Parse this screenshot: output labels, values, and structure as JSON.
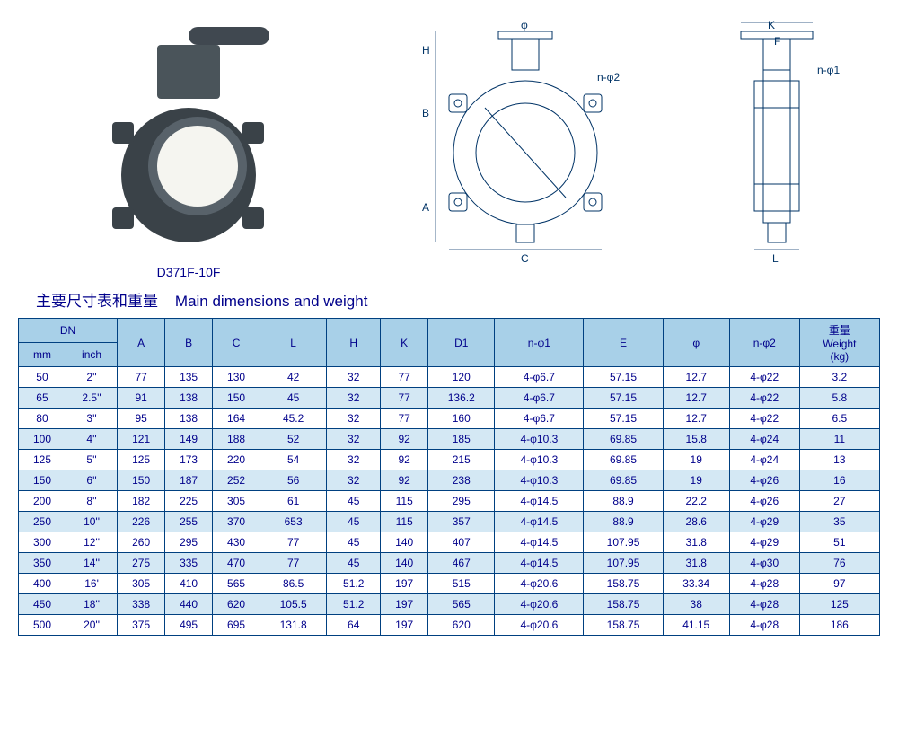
{
  "model": "D371F-10F",
  "title_cn": "主要尺寸表和重量",
  "title_en": "Main dimensions and weight",
  "diagram_labels": {
    "phi": "φ",
    "H": "H",
    "B": "B",
    "A": "A",
    "C": "C",
    "K": "K",
    "F": "F",
    "L": "L",
    "nphi1": "n-φ1",
    "nphi2": "n-φ2"
  },
  "table": {
    "header_group": "DN",
    "headers_sub": [
      "mm",
      "inch"
    ],
    "headers_main": [
      "A",
      "B",
      "C",
      "L",
      "H",
      "K",
      "D1",
      "n-φ1",
      "E",
      "φ",
      "n-φ2"
    ],
    "header_weight_cn": "重量",
    "header_weight_en": "Weight",
    "header_weight_unit": "(kg)",
    "rows": [
      [
        "50",
        "2''",
        "77",
        "135",
        "130",
        "42",
        "32",
        "77",
        "120",
        "4-φ6.7",
        "57.15",
        "12.7",
        "4-φ22",
        "3.2"
      ],
      [
        "65",
        "2.5''",
        "91",
        "138",
        "150",
        "45",
        "32",
        "77",
        "136.2",
        "4-φ6.7",
        "57.15",
        "12.7",
        "4-φ22",
        "5.8"
      ],
      [
        "80",
        "3''",
        "95",
        "138",
        "164",
        "45.2",
        "32",
        "77",
        "160",
        "4-φ6.7",
        "57.15",
        "12.7",
        "4-φ22",
        "6.5"
      ],
      [
        "100",
        "4''",
        "121",
        "149",
        "188",
        "52",
        "32",
        "92",
        "185",
        "4-φ10.3",
        "69.85",
        "15.8",
        "4-φ24",
        "11"
      ],
      [
        "125",
        "5''",
        "125",
        "173",
        "220",
        "54",
        "32",
        "92",
        "215",
        "4-φ10.3",
        "69.85",
        "19",
        "4-φ24",
        "13"
      ],
      [
        "150",
        "6''",
        "150",
        "187",
        "252",
        "56",
        "32",
        "92",
        "238",
        "4-φ10.3",
        "69.85",
        "19",
        "4-φ26",
        "16"
      ],
      [
        "200",
        "8''",
        "182",
        "225",
        "305",
        "61",
        "45",
        "115",
        "295",
        "4-φ14.5",
        "88.9",
        "22.2",
        "4-φ26",
        "27"
      ],
      [
        "250",
        "10''",
        "226",
        "255",
        "370",
        "653",
        "45",
        "115",
        "357",
        "4-φ14.5",
        "88.9",
        "28.6",
        "4-φ29",
        "35"
      ],
      [
        "300",
        "12''",
        "260",
        "295",
        "430",
        "77",
        "45",
        "140",
        "407",
        "4-φ14.5",
        "107.95",
        "31.8",
        "4-φ29",
        "51"
      ],
      [
        "350",
        "14''",
        "275",
        "335",
        "470",
        "77",
        "45",
        "140",
        "467",
        "4-φ14.5",
        "107.95",
        "31.8",
        "4-φ30",
        "76"
      ],
      [
        "400",
        "16'",
        "305",
        "410",
        "565",
        "86.5",
        "51.2",
        "197",
        "515",
        "4-φ20.6",
        "158.75",
        "33.34",
        "4-φ28",
        "97"
      ],
      [
        "450",
        "18''",
        "338",
        "440",
        "620",
        "105.5",
        "51.2",
        "197",
        "565",
        "4-φ20.6",
        "158.75",
        "38",
        "4-φ28",
        "125"
      ],
      [
        "500",
        "20''",
        "375",
        "495",
        "695",
        "131.8",
        "64",
        "197",
        "620",
        "4-φ20.6",
        "158.75",
        "41.15",
        "4-φ28",
        "186"
      ]
    ]
  },
  "colors": {
    "border": "#004080",
    "text": "#00008b",
    "header_bg": "#a8d0e8",
    "row_alt_bg": "#d4e8f4"
  }
}
